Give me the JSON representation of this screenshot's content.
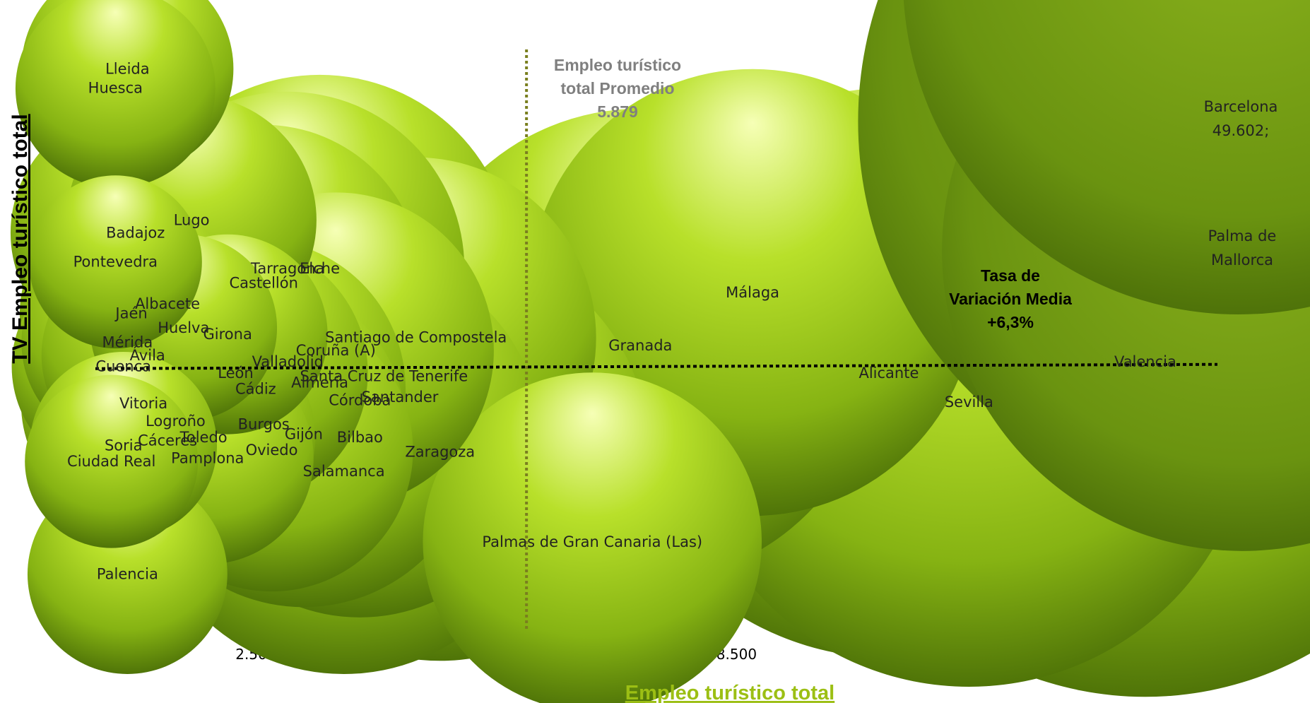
{
  "chart_data": {
    "type": "bubble",
    "xlabel": "Empleo turístico total",
    "ylabel": "TV Empleo turístico total",
    "xlim": [
      500,
      14500
    ],
    "ylim": [
      -10,
      26
    ],
    "x_ticks": [
      "500",
      "2.500",
      "4.500",
      "6.500",
      "8.500",
      "10.500",
      "12.500",
      "14.500"
    ],
    "y_ticks": [
      "-10",
      "-8",
      "-6",
      "-4",
      "-2",
      "0",
      "2",
      "4",
      "6",
      "8",
      "10",
      "12",
      "14",
      "16",
      "18",
      "20",
      "22",
      "24",
      "26"
    ],
    "bubble_color": "#9acd1a",
    "reference_lines": {
      "x_average": 5879,
      "y_average": 6.3,
      "x_annotation": [
        "Empleo turístico",
        "total Promedio",
        "5.879"
      ],
      "y_annotation": [
        "Tasa de",
        "Variación Media",
        "+6,3%"
      ]
    },
    "points": [
      {
        "name": "Lleida",
        "x": 900,
        "y": 24.8,
        "size": 900
      },
      {
        "name": "Huesca",
        "x": 750,
        "y": 23.6,
        "size": 800
      },
      {
        "name": "Badajoz",
        "x": 1000,
        "y": 14.6,
        "size": 1250
      },
      {
        "name": "Lugo",
        "x": 1700,
        "y": 15.4,
        "size": 1250
      },
      {
        "name": "Pontevedra",
        "x": 750,
        "y": 12.8,
        "size": 600
      },
      {
        "name": "Tarragona",
        "x": 2900,
        "y": 12.4,
        "size": 2500
      },
      {
        "name": "Elche",
        "x": 3300,
        "y": 12.4,
        "size": 3000
      },
      {
        "name": "Castellón",
        "x": 2600,
        "y": 11.5,
        "size": 2000
      },
      {
        "name": "Albacete",
        "x": 1400,
        "y": 10.2,
        "size": 1300
      },
      {
        "name": "Jaén",
        "x": 950,
        "y": 9.6,
        "size": 1000
      },
      {
        "name": "Huelva",
        "x": 1600,
        "y": 8.7,
        "size": 700
      },
      {
        "name": "Girona",
        "x": 2150,
        "y": 8.3,
        "size": 800
      },
      {
        "name": "Mérida",
        "x": 900,
        "y": 7.8,
        "size": 900
      },
      {
        "name": "Ávila",
        "x": 1150,
        "y": 7.0,
        "size": 900
      },
      {
        "name": "Cuenca",
        "x": 850,
        "y": 6.3,
        "size": 1000
      },
      {
        "name": "Santiago de Compostela",
        "x": 4500,
        "y": 8.1,
        "size": 2600
      },
      {
        "name": "Coruña (A)",
        "x": 3500,
        "y": 7.3,
        "size": 2000
      },
      {
        "name": "Valladolid",
        "x": 2900,
        "y": 6.6,
        "size": 2500
      },
      {
        "name": "Santa Cruz de Tenerife",
        "x": 4100,
        "y": 5.7,
        "size": 3000
      },
      {
        "name": "León",
        "x": 2250,
        "y": 5.9,
        "size": 1400
      },
      {
        "name": "Cádiz",
        "x": 2500,
        "y": 4.9,
        "size": 1800
      },
      {
        "name": "Almería",
        "x": 3300,
        "y": 5.3,
        "size": 3300
      },
      {
        "name": "Santander",
        "x": 4300,
        "y": 4.4,
        "size": 2700
      },
      {
        "name": "Córdoba",
        "x": 3800,
        "y": 4.2,
        "size": 3000
      },
      {
        "name": "Vitoria",
        "x": 1100,
        "y": 4.0,
        "size": 1200
      },
      {
        "name": "Logroño",
        "x": 1500,
        "y": 2.9,
        "size": 1200
      },
      {
        "name": "Burgos",
        "x": 2600,
        "y": 2.7,
        "size": 1600
      },
      {
        "name": "Gijón",
        "x": 3100,
        "y": 2.1,
        "size": 2400
      },
      {
        "name": "Bilbao",
        "x": 3800,
        "y": 1.9,
        "size": 2600
      },
      {
        "name": "Toledo",
        "x": 1850,
        "y": 1.9,
        "size": 1000
      },
      {
        "name": "Cáceres",
        "x": 1400,
        "y": 1.7,
        "size": 1200
      },
      {
        "name": "Oviedo",
        "x": 2700,
        "y": 1.1,
        "size": 1600
      },
      {
        "name": "Zaragoza",
        "x": 4800,
        "y": 1.0,
        "size": 3500
      },
      {
        "name": "Soria",
        "x": 850,
        "y": 1.4,
        "size": 700
      },
      {
        "name": "Pamplona",
        "x": 1900,
        "y": 0.6,
        "size": 900
      },
      {
        "name": "Salamanca",
        "x": 3600,
        "y": -0.2,
        "size": 3300
      },
      {
        "name": "Ciudad Real",
        "x": 700,
        "y": 0.4,
        "size": 600
      },
      {
        "name": "Palencia",
        "x": 900,
        "y": -6.6,
        "size": 800
      },
      {
        "name": "Palmas de Gran Canaria (Las)",
        "x": 6700,
        "y": -4.6,
        "size": 2300
      },
      {
        "name": "Granada",
        "x": 7300,
        "y": 7.6,
        "size": 4500
      },
      {
        "name": "Málaga",
        "x": 8700,
        "y": 10.9,
        "size": 4000
      },
      {
        "name": "Alicante",
        "x": 10400,
        "y": 5.9,
        "size": 6500
      },
      {
        "name": "Sevilla",
        "x": 11400,
        "y": 4.1,
        "size": 6500
      },
      {
        "name": "Valencia",
        "x": 13600,
        "y": 6.6,
        "size": 9000
      }
    ],
    "offscale_points": [
      {
        "name": "Barcelona",
        "label_lines": [
          "Barcelona",
          "49.602;"
        ],
        "size": 13000
      },
      {
        "name": "Palma de Mallorca",
        "label_lines": [
          "Palma de",
          "Mallorca"
        ],
        "size": 8000
      },
      {
        "name": "offscale-top",
        "label_lines": [],
        "size": 10000
      }
    ]
  }
}
